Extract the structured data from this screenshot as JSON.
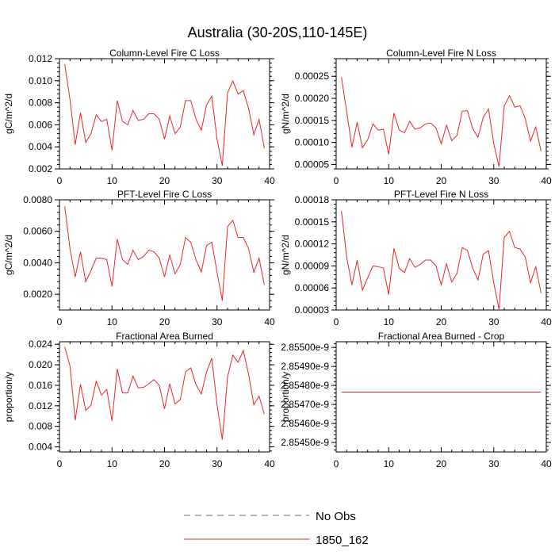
{
  "page_title": "Australia (30-20S,110-145E)",
  "legend": {
    "entries": [
      {
        "label": "No Obs",
        "style": "dashed",
        "color": "#6a6aa0"
      },
      {
        "label": "1850_162",
        "style": "solid",
        "color": "#e8252a"
      }
    ]
  },
  "series_color": "#e8252a",
  "chart_data": [
    {
      "type": "line",
      "title": "Column-Level Fire C Loss",
      "ylabel": "gC/m^2/d",
      "xlim": [
        0,
        40
      ],
      "ylim": [
        0.002,
        0.012
      ],
      "xticks": [
        0,
        10,
        20,
        30,
        40
      ],
      "xtick_labels": [
        "0",
        "10",
        "20",
        "30",
        "40"
      ],
      "yticks": [
        0.002,
        0.004,
        0.006,
        0.008,
        0.01,
        0.012
      ],
      "ytick_labels": [
        "0.002",
        "0.004",
        "0.006",
        "0.008",
        "0.010",
        "0.012"
      ],
      "series": [
        {
          "x": [
            1,
            2,
            3,
            4,
            5,
            6,
            7,
            8,
            9,
            10,
            11,
            12,
            13,
            14,
            15,
            16,
            17,
            18,
            19,
            20,
            21,
            22,
            23,
            24,
            25,
            26,
            27,
            28,
            29,
            30,
            31,
            32,
            33,
            34,
            35,
            36,
            37,
            38,
            39
          ],
          "values": [
            0.0115,
            0.0083,
            0.0042,
            0.0071,
            0.0044,
            0.0052,
            0.0069,
            0.0063,
            0.0065,
            0.0037,
            0.0082,
            0.0063,
            0.006,
            0.0073,
            0.0064,
            0.0065,
            0.007,
            0.007,
            0.0065,
            0.0047,
            0.0068,
            0.0052,
            0.0058,
            0.0082,
            0.0082,
            0.0065,
            0.0055,
            0.0078,
            0.0086,
            0.0047,
            0.0023,
            0.0089,
            0.01,
            0.0088,
            0.0091,
            0.0075,
            0.0051,
            0.0065,
            0.0039
          ]
        }
      ]
    },
    {
      "type": "line",
      "title": "Column-Level Fire N Loss",
      "ylabel": "gN/m^2/d",
      "xlim": [
        0,
        40
      ],
      "ylim": [
        4e-05,
        0.00029
      ],
      "xticks": [
        0,
        10,
        20,
        30,
        40
      ],
      "xtick_labels": [
        "0",
        "10",
        "20",
        "30",
        "40"
      ],
      "yticks": [
        5e-05,
        0.0001,
        0.00015,
        0.0002,
        0.00025
      ],
      "ytick_labels": [
        "0.00005",
        "0.00010",
        "0.00015",
        "0.00020",
        "0.00025"
      ],
      "series": [
        {
          "x": [
            1,
            2,
            3,
            4,
            5,
            6,
            7,
            8,
            9,
            10,
            11,
            12,
            13,
            14,
            15,
            16,
            17,
            18,
            19,
            20,
            21,
            22,
            23,
            24,
            25,
            26,
            27,
            28,
            29,
            30,
            31,
            32,
            33,
            34,
            35,
            36,
            37,
            38,
            39
          ],
          "values": [
            0.000248,
            0.00017,
            8.9e-05,
            0.000146,
            8.8e-05,
            0.000106,
            0.000142,
            0.000128,
            0.00013,
            7.3e-05,
            0.000167,
            0.000128,
            0.000122,
            0.000148,
            0.00013,
            0.000133,
            0.000142,
            0.000144,
            0.000133,
            9.7e-05,
            0.000139,
            0.000104,
            0.000116,
            0.000171,
            0.000172,
            0.000131,
            0.000112,
            0.000157,
            0.000176,
            9.7e-05,
            4.5e-05,
            0.000183,
            0.000206,
            0.00018,
            0.000183,
            0.000154,
            0.000103,
            0.000135,
            8e-05
          ]
        }
      ]
    },
    {
      "type": "line",
      "title": "PFT-Level Fire C Loss",
      "ylabel": "gC/m^2/d",
      "xlim": [
        0,
        40
      ],
      "ylim": [
        0.001,
        0.008
      ],
      "xticks": [
        0,
        10,
        20,
        30,
        40
      ],
      "xtick_labels": [
        "0",
        "10",
        "20",
        "30",
        "40"
      ],
      "yticks": [
        0.002,
        0.004,
        0.006,
        0.008
      ],
      "ytick_labels": [
        "0.0020",
        "0.0040",
        "0.0060",
        "0.0080"
      ],
      "series": [
        {
          "x": [
            1,
            2,
            3,
            4,
            5,
            6,
            7,
            8,
            9,
            10,
            11,
            12,
            13,
            14,
            15,
            16,
            17,
            18,
            19,
            20,
            21,
            22,
            23,
            24,
            25,
            26,
            27,
            28,
            29,
            30,
            31,
            32,
            33,
            34,
            35,
            36,
            37,
            38,
            39
          ],
          "values": [
            0.0076,
            0.0049,
            0.0031,
            0.0047,
            0.0028,
            0.0035,
            0.0043,
            0.0043,
            0.0042,
            0.0025,
            0.0055,
            0.0042,
            0.0039,
            0.0048,
            0.0042,
            0.0044,
            0.0048,
            0.0047,
            0.0043,
            0.0031,
            0.0045,
            0.0033,
            0.0039,
            0.0056,
            0.0053,
            0.0042,
            0.0034,
            0.0051,
            0.0053,
            0.0034,
            0.0016,
            0.0063,
            0.0067,
            0.0056,
            0.0056,
            0.0049,
            0.0034,
            0.0043,
            0.0026
          ]
        }
      ]
    },
    {
      "type": "line",
      "title": "PFT-Level Fire N Loss",
      "ylabel": "gN/m^2/d",
      "xlim": [
        0,
        40
      ],
      "ylim": [
        3e-05,
        0.00018
      ],
      "xticks": [
        0,
        10,
        20,
        30,
        40
      ],
      "xtick_labels": [
        "0",
        "10",
        "20",
        "30",
        "40"
      ],
      "yticks": [
        3e-05,
        6e-05,
        9e-05,
        0.00012,
        0.00015,
        0.00018
      ],
      "ytick_labels": [
        "0.00003",
        "0.00006",
        "0.00009",
        "0.00012",
        "0.00015",
        "0.00018"
      ],
      "series": [
        {
          "x": [
            1,
            2,
            3,
            4,
            5,
            6,
            7,
            8,
            9,
            10,
            11,
            12,
            13,
            14,
            15,
            16,
            17,
            18,
            19,
            20,
            21,
            22,
            23,
            24,
            25,
            26,
            27,
            28,
            29,
            30,
            31,
            32,
            33,
            34,
            35,
            36,
            37,
            38,
            39
          ],
          "values": [
            0.000165,
            0.000102,
            6.4e-05,
            9.8e-05,
            5.7e-05,
            7.4e-05,
            9e-05,
            8.9e-05,
            8.7e-05,
            5.1e-05,
            0.000114,
            8.7e-05,
            8.1e-05,
            0.0001,
            8.8e-05,
            9.2e-05,
            9.8e-05,
            9.8e-05,
            9e-05,
            6.4e-05,
            9.3e-05,
            6.8e-05,
            8e-05,
            0.000115,
            0.000111,
            8.7e-05,
            7.1e-05,
            0.000106,
            0.000111,
            6.7e-05,
            3.1e-05,
            0.000129,
            0.000137,
            0.000115,
            0.000113,
            0.000102,
            6.7e-05,
            8.9e-05,
            5.3e-05
          ]
        }
      ]
    },
    {
      "type": "line",
      "title": "Fractional Area Burned",
      "ylabel": "proportion/y",
      "xlim": [
        0,
        40
      ],
      "ylim": [
        0.003,
        0.0245
      ],
      "xticks": [
        0,
        10,
        20,
        30,
        40
      ],
      "xtick_labels": [
        "0",
        "10",
        "20",
        "30",
        "40"
      ],
      "yticks": [
        0.004,
        0.008,
        0.012,
        0.016,
        0.02,
        0.024
      ],
      "ytick_labels": [
        "0.004",
        "0.008",
        "0.012",
        "0.016",
        "0.020",
        "0.024"
      ],
      "series": [
        {
          "x": [
            1,
            2,
            3,
            4,
            5,
            6,
            7,
            8,
            9,
            10,
            11,
            12,
            13,
            14,
            15,
            16,
            17,
            18,
            19,
            20,
            21,
            22,
            23,
            24,
            25,
            26,
            27,
            28,
            29,
            30,
            31,
            32,
            33,
            34,
            35,
            36,
            37,
            38,
            39
          ],
          "values": [
            0.0235,
            0.0198,
            0.0092,
            0.0162,
            0.0111,
            0.0121,
            0.0168,
            0.0141,
            0.0152,
            0.0091,
            0.0192,
            0.0145,
            0.0145,
            0.0178,
            0.0155,
            0.0156,
            0.0163,
            0.0171,
            0.016,
            0.0114,
            0.0163,
            0.0124,
            0.0132,
            0.0186,
            0.0194,
            0.0161,
            0.0143,
            0.0186,
            0.0213,
            0.0122,
            0.0054,
            0.0176,
            0.0219,
            0.0205,
            0.0228,
            0.0182,
            0.0122,
            0.0139,
            0.0104
          ]
        }
      ]
    },
    {
      "type": "line",
      "title": "Fractional Area Burned - Crop",
      "ylabel": "proportion/y",
      "xlim": [
        0,
        40
      ],
      "ylim": [
        2.85445e-09,
        2.85503e-09
      ],
      "xticks": [
        0,
        10,
        20,
        30,
        40
      ],
      "xtick_labels": [
        "0",
        "10",
        "20",
        "30",
        "40"
      ],
      "yticks": [
        2.8545e-09,
        2.8546e-09,
        2.8547e-09,
        2.8548e-09,
        2.8549e-09,
        2.855e-09
      ],
      "ytick_labels": [
        "2.85450e-9",
        "2.85460e-9",
        "2.85470e-9",
        "2.85480e-9",
        "2.85490e-9",
        "2.85500e-9"
      ],
      "series": [
        {
          "x": [
            1,
            39
          ],
          "values": [
            2.854765e-09,
            2.854765e-09
          ]
        }
      ]
    }
  ]
}
